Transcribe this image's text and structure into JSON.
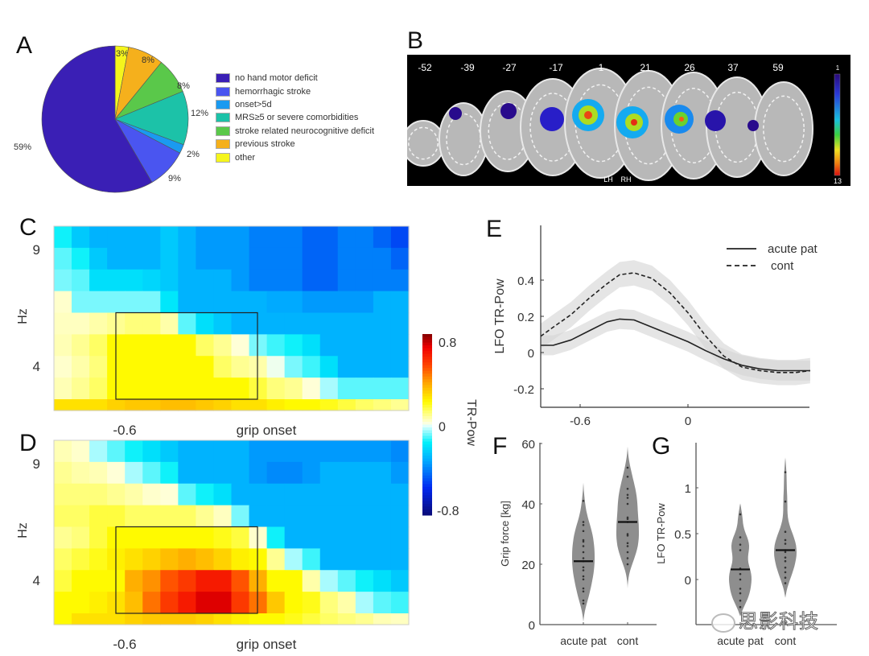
{
  "panels": {
    "A": "A",
    "B": "B",
    "C": "C",
    "D": "D",
    "E": "E",
    "F": "F",
    "G": "G"
  },
  "watermark": "思影科技",
  "chart_data": [
    {
      "id": "A",
      "type": "pie",
      "title": "",
      "slices": [
        {
          "label": "no hand motor deficit",
          "value": 59,
          "pct_label": "59%",
          "color": "#3a1fb5"
        },
        {
          "label": "hemorrhagic stroke",
          "value": 9,
          "pct_label": "9%",
          "color": "#4a55f0"
        },
        {
          "label": "onset>5d",
          "value": 2,
          "pct_label": "2%",
          "color": "#1a9af0"
        },
        {
          "label": "MRS≥5 or severe comorbidities",
          "value": 12,
          "pct_label": "12%",
          "color": "#1cc2a8"
        },
        {
          "label": "stroke related neurocognitive deficit",
          "value": 8,
          "pct_label": "8%",
          "color": "#5ac84a"
        },
        {
          "label": "previous stroke",
          "value": 8,
          "pct_label": "8%",
          "color": "#f5b01c"
        },
        {
          "label": "other",
          "value": 3,
          "pct_label": "3%",
          "color": "#f5f51c"
        }
      ],
      "legend_position": "right"
    },
    {
      "id": "B",
      "type": "heatmap",
      "description": "Lesion overlap axial slices",
      "slice_labels": [
        "-52",
        "-39",
        "-27",
        "-17",
        "1",
        "21",
        "26",
        "37",
        "59"
      ],
      "hemisphere_labels": [
        "LH",
        "RH"
      ],
      "colorbar": {
        "min_label": "1",
        "max_label": "13"
      }
    },
    {
      "id": "C",
      "type": "heatmap",
      "ylabel": "Hz",
      "yticks": [
        "9",
        "4"
      ],
      "xticks": [
        "-0.6",
        "grip onset"
      ],
      "value_range": [
        -0.8,
        0.8
      ],
      "rows": [
        [
          -0.15,
          -0.25,
          -0.3,
          -0.3,
          -0.3,
          -0.3,
          -0.25,
          -0.3,
          -0.35,
          -0.35,
          -0.35,
          -0.4,
          -0.4,
          -0.4,
          -0.45,
          -0.45,
          -0.4,
          -0.4,
          -0.45,
          -0.5
        ],
        [
          -0.1,
          -0.15,
          -0.25,
          -0.3,
          -0.3,
          -0.3,
          -0.25,
          -0.3,
          -0.35,
          -0.35,
          -0.35,
          -0.4,
          -0.4,
          -0.4,
          -0.45,
          -0.45,
          -0.4,
          -0.4,
          -0.4,
          -0.45
        ],
        [
          -0.08,
          -0.1,
          -0.2,
          -0.2,
          -0.2,
          -0.22,
          -0.25,
          -0.3,
          -0.3,
          -0.3,
          -0.35,
          -0.4,
          -0.4,
          -0.4,
          -0.45,
          -0.45,
          -0.4,
          -0.4,
          -0.4,
          -0.4
        ],
        [
          0.03,
          -0.08,
          -0.08,
          -0.08,
          -0.08,
          -0.08,
          -0.18,
          -0.3,
          -0.3,
          -0.3,
          -0.3,
          -0.3,
          -0.32,
          -0.32,
          -0.35,
          -0.35,
          -0.35,
          -0.35,
          -0.3,
          -0.3
        ],
        [
          0.04,
          0.04,
          0.06,
          0.08,
          0.1,
          0.1,
          0.06,
          -0.1,
          -0.2,
          -0.25,
          -0.3,
          -0.3,
          -0.3,
          -0.3,
          -0.3,
          -0.3,
          -0.3,
          -0.3,
          -0.3,
          -0.3
        ],
        [
          0.05,
          0.08,
          0.12,
          0.2,
          0.2,
          0.2,
          0.2,
          0.2,
          0.12,
          0.08,
          0.02,
          -0.08,
          -0.12,
          -0.15,
          -0.2,
          -0.3,
          -0.3,
          -0.3,
          -0.3,
          -0.3
        ],
        [
          0.03,
          0.06,
          0.1,
          0.2,
          0.2,
          0.2,
          0.2,
          0.2,
          0.2,
          0.12,
          0.08,
          0.06,
          0.0,
          -0.08,
          -0.12,
          -0.2,
          -0.3,
          -0.3,
          -0.3,
          -0.3
        ],
        [
          0.05,
          0.08,
          0.12,
          0.2,
          0.2,
          0.2,
          0.2,
          0.2,
          0.2,
          0.2,
          0.2,
          0.15,
          0.1,
          0.08,
          0.02,
          -0.05,
          -0.1,
          -0.1,
          -0.1,
          -0.1
        ],
        [
          0.25,
          0.25,
          0.25,
          0.28,
          0.3,
          0.3,
          0.32,
          0.32,
          0.3,
          0.28,
          0.25,
          0.25,
          0.22,
          0.2,
          0.2,
          0.18,
          0.15,
          0.12,
          0.1,
          0.08
        ]
      ],
      "highlight_box": {
        "col_start": 3.5,
        "col_end": 11.5,
        "row_start": 4,
        "row_end": 8
      }
    },
    {
      "id": "D",
      "type": "heatmap",
      "ylabel": "Hz",
      "yticks": [
        "9",
        "4"
      ],
      "xticks": [
        "-0.6",
        "grip onset"
      ],
      "value_range": [
        -0.8,
        0.8
      ],
      "rows": [
        [
          0.05,
          0.03,
          -0.05,
          -0.1,
          -0.15,
          -0.2,
          -0.25,
          -0.3,
          -0.3,
          -0.3,
          -0.3,
          -0.35,
          -0.35,
          -0.35,
          -0.35,
          -0.35,
          -0.35,
          -0.35,
          -0.35,
          -0.38
        ],
        [
          0.08,
          0.06,
          0.05,
          0.02,
          -0.05,
          -0.1,
          -0.15,
          -0.3,
          -0.3,
          -0.3,
          -0.3,
          -0.35,
          -0.38,
          -0.38,
          -0.35,
          -0.3,
          -0.3,
          -0.3,
          -0.3,
          -0.35
        ],
        [
          0.1,
          0.1,
          0.1,
          0.08,
          0.06,
          0.03,
          0.02,
          -0.1,
          -0.15,
          -0.2,
          -0.3,
          -0.3,
          -0.3,
          -0.3,
          -0.3,
          -0.3,
          -0.3,
          -0.3,
          -0.3,
          -0.3
        ],
        [
          0.12,
          0.12,
          0.15,
          0.15,
          0.12,
          0.12,
          0.12,
          0.12,
          0.08,
          0.04,
          -0.08,
          -0.3,
          -0.3,
          -0.3,
          -0.3,
          -0.3,
          -0.3,
          -0.3,
          -0.3,
          -0.3
        ],
        [
          0.08,
          0.1,
          0.15,
          0.2,
          0.2,
          0.2,
          0.2,
          0.2,
          0.2,
          0.18,
          0.15,
          0.03,
          -0.15,
          -0.3,
          -0.3,
          -0.3,
          -0.3,
          -0.3,
          -0.3,
          -0.3
        ],
        [
          0.12,
          0.15,
          0.18,
          0.22,
          0.25,
          0.28,
          0.32,
          0.35,
          0.32,
          0.28,
          0.22,
          0.2,
          0.08,
          -0.05,
          -0.12,
          -0.3,
          -0.3,
          -0.3,
          -0.3,
          -0.3
        ],
        [
          0.15,
          0.2,
          0.2,
          0.2,
          0.35,
          0.4,
          0.5,
          0.55,
          0.62,
          0.62,
          0.5,
          0.35,
          0.2,
          0.2,
          0.06,
          -0.05,
          -0.1,
          -0.15,
          -0.2,
          -0.25
        ],
        [
          0.2,
          0.2,
          0.22,
          0.25,
          0.32,
          0.45,
          0.55,
          0.62,
          0.7,
          0.7,
          0.55,
          0.45,
          0.3,
          0.2,
          0.18,
          0.1,
          0.06,
          -0.05,
          -0.1,
          -0.12
        ],
        [
          0.2,
          0.25,
          0.25,
          0.25,
          0.28,
          0.3,
          0.3,
          0.3,
          0.28,
          0.25,
          0.22,
          0.2,
          0.2,
          0.18,
          0.15,
          0.12,
          0.1,
          0.08,
          0.05,
          0.04
        ]
      ],
      "highlight_box": {
        "col_start": 3.5,
        "col_end": 11.5,
        "row_start": 4,
        "row_end": 8
      }
    },
    {
      "id": "colorbar_CD",
      "type": "colorbar",
      "label": "TR-Pow",
      "ticks": [
        "0.8",
        "0",
        "-0.8"
      ],
      "range": [
        -0.8,
        0.8
      ]
    },
    {
      "id": "E",
      "type": "line",
      "xlabel": "",
      "ylabel": "LFO TR-Pow",
      "xticks": [
        "-0.6",
        "0"
      ],
      "xtick_values": [
        -0.6,
        0
      ],
      "yticks": [
        "0.4",
        "0.2",
        "0",
        "-0.2"
      ],
      "ytick_values": [
        0.4,
        0.2,
        0,
        -0.2
      ],
      "xlim": [
        -0.82,
        0.68
      ],
      "ylim": [
        -0.3,
        0.65
      ],
      "legend_position": "top-right",
      "x": [
        -0.82,
        -0.75,
        -0.65,
        -0.55,
        -0.45,
        -0.38,
        -0.3,
        -0.2,
        -0.1,
        0.0,
        0.1,
        0.2,
        0.3,
        0.4,
        0.5,
        0.6,
        0.68
      ],
      "series": [
        {
          "name": "acute pat",
          "style": "solid",
          "values": [
            0.04,
            0.04,
            0.07,
            0.12,
            0.17,
            0.185,
            0.18,
            0.14,
            0.1,
            0.06,
            0.01,
            -0.035,
            -0.07,
            -0.09,
            -0.1,
            -0.1,
            -0.1
          ],
          "ci": 0.055
        },
        {
          "name": "cont",
          "style": "dashed",
          "values": [
            0.09,
            0.14,
            0.21,
            0.3,
            0.38,
            0.43,
            0.44,
            0.41,
            0.33,
            0.22,
            0.09,
            -0.02,
            -0.08,
            -0.1,
            -0.11,
            -0.11,
            -0.1
          ],
          "ci": 0.07
        }
      ]
    },
    {
      "id": "F",
      "type": "violin",
      "ylabel": "Grip force [kg]",
      "categories": [
        "acute pat",
        "cont"
      ],
      "yticks": [
        "60",
        "40",
        "20",
        "0"
      ],
      "ytick_values": [
        60,
        40,
        20,
        0
      ],
      "ylim": [
        0,
        60
      ],
      "medians": [
        21,
        34
      ],
      "points": [
        [
          41,
          34,
          33,
          31,
          28,
          27.5,
          26,
          24,
          22,
          21,
          19,
          18,
          16,
          15,
          12,
          11,
          8,
          7
        ],
        [
          52,
          49,
          45,
          43,
          42,
          40,
          35.5,
          35,
          34,
          30,
          29.5,
          27,
          26,
          24,
          22,
          20
        ]
      ],
      "ranges": [
        [
          1,
          47
        ],
        [
          12,
          59
        ]
      ]
    },
    {
      "id": "G",
      "type": "violin",
      "ylabel": "LFO TR-Pow",
      "categories": [
        "acute pat",
        "cont"
      ],
      "yticks": [
        "1",
        "0.5",
        "0"
      ],
      "ytick_values": [
        1,
        0.5,
        0
      ],
      "ylim": [
        -0.5,
        1.5
      ],
      "medians": [
        0.11,
        0.32
      ],
      "points": [
        [
          0.71,
          0.46,
          0.38,
          0.32,
          0.12,
          0.06,
          0.0,
          -0.1,
          -0.15,
          -0.23,
          -0.3
        ],
        [
          1.17,
          0.85,
          0.52,
          0.43,
          0.39,
          0.32,
          0.3,
          0.24,
          0.2,
          0.13,
          0.08,
          0.02,
          -0.04
        ]
      ],
      "ranges": [
        [
          -0.4,
          0.83
        ],
        [
          -0.2,
          1.33
        ]
      ]
    }
  ]
}
